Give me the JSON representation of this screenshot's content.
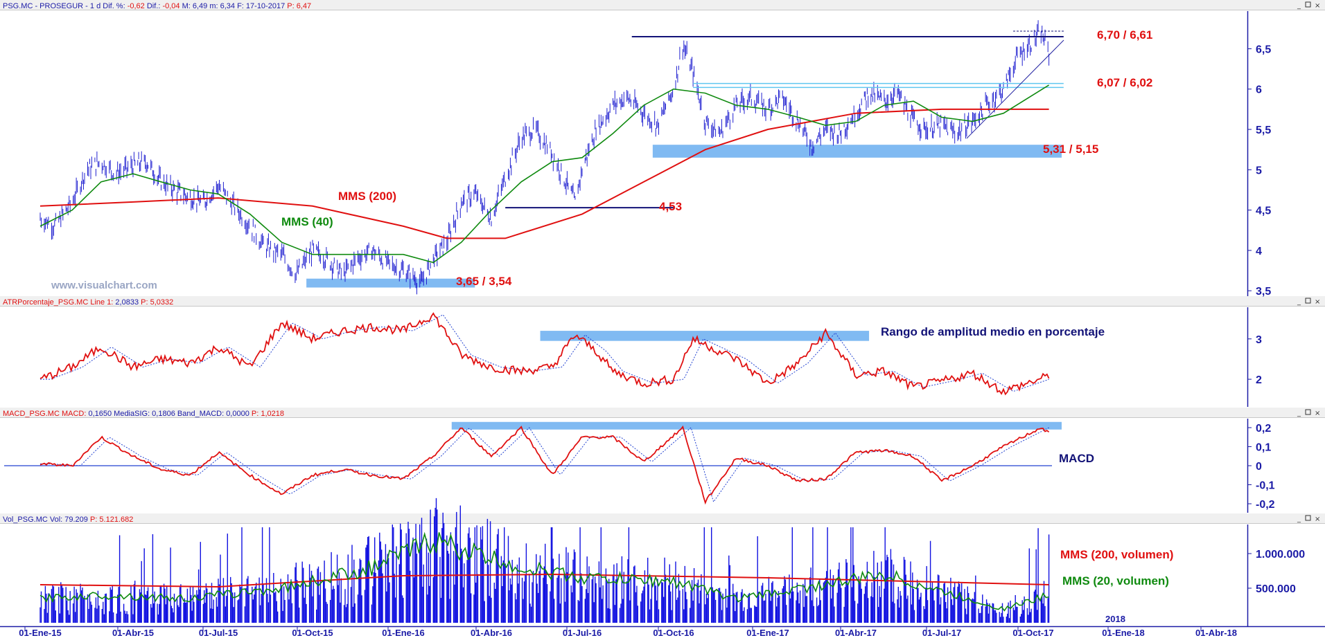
{
  "colors": {
    "price": "#2020d0",
    "sma200": "#e01010",
    "sma40": "#0f8a0f",
    "zone": "#6aaef0",
    "resistance": "#121277",
    "axis": "#1a1aa6",
    "volume_bar": "#1010e0",
    "macd_signal": "#2040d0"
  },
  "window_icons": {
    "minimize": "minimize-icon",
    "restore": "restore-icon",
    "close": "close-icon"
  },
  "panels": [
    {
      "id": "price",
      "header": [
        {
          "text": "PSG.MC - PROSEGUR - 1 d  Dif. %:",
          "color": "#1a1aa6"
        },
        {
          "text": " -0,62",
          "color": "#e01010"
        },
        {
          "text": "  Dif.:",
          "color": "#1a1aa6"
        },
        {
          "text": " -0,04",
          "color": "#e01010"
        },
        {
          "text": "  M: 6,49  m: 6,34  F: 17-10-2017",
          "color": "#1a1aa6"
        },
        {
          "text": "  P: 6,47",
          "color": "#e01010"
        }
      ],
      "yticks": [
        "6,5",
        "6",
        "5,5",
        "5",
        "4,5",
        "4",
        "3,5"
      ],
      "watermark": "www.visualchart.com"
    },
    {
      "id": "atr",
      "header": [
        {
          "text": "ATRPorcentaje_PSG.MC  Line 1:",
          "color": "#e01010"
        },
        {
          "text": " 2,0833",
          "color": "#1a1aa6"
        },
        {
          "text": "  P: 5,0332",
          "color": "#e01010"
        }
      ],
      "yticks": [
        "3",
        "2"
      ]
    },
    {
      "id": "macd",
      "header": [
        {
          "text": "MACD_PSG.MC  MACD:",
          "color": "#e01010"
        },
        {
          "text": " 0,1650  MediaSIG: 0,1806  Band_MACD: 0,0000",
          "color": "#1a1aa6"
        },
        {
          "text": "  P: 1,0218",
          "color": "#e01010"
        }
      ],
      "yticks": [
        "0,2",
        "0,1",
        "0",
        "-0,1",
        "-0,2"
      ]
    },
    {
      "id": "volume",
      "header": [
        {
          "text": "Vol_PSG.MC  Vol: 79.209",
          "color": "#1a1aa6"
        },
        {
          "text": "  P: 5.121.682",
          "color": "#e01010"
        }
      ],
      "yticks": [
        "1.000.000",
        "500.000"
      ]
    }
  ],
  "annotations": {
    "sma200": "MMS (200)",
    "sma40": "MMS (40)",
    "low_zone": "3,65 / 3,54",
    "support_453": "4,53",
    "support_zone": "5,31 / 5,15",
    "mid_resistance": "6,07 / 6,02",
    "top_resistance": "6,70 / 6,61",
    "atr_title": "Rango de amplitud medio en porcentaje",
    "macd_title": "MACD",
    "vol_sma200": "MMS (200, volumen)",
    "vol_sma20": "MMS (20, volumen)"
  },
  "x_axis": {
    "labels": [
      "01-Ene-15",
      "01-Abr-15",
      "01-Jul-15",
      "01-Oct-15",
      "01-Ene-16",
      "01-Abr-16",
      "01-Jul-16",
      "01-Oct-16",
      "01-Ene-17",
      "01-Abr-17",
      "01-Jul-17",
      "01-Oct-17",
      "01-Ene-18",
      "01-Abr-18"
    ],
    "year_marker": "2018"
  },
  "chart_data": [
    {
      "type": "candlestick",
      "id": "price",
      "ylim": [
        3.45,
        6.95
      ],
      "series_names": [
        "MMS (200)",
        "MMS (40)"
      ],
      "price_path": [
        [
          "2015-01-01",
          4.4
        ],
        [
          "2015-01-15",
          4.3
        ],
        [
          "2015-02-01",
          4.6
        ],
        [
          "2015-02-15",
          5.0
        ],
        [
          "2015-03-01",
          5.1
        ],
        [
          "2015-03-15",
          4.95
        ],
        [
          "2015-04-01",
          5.05
        ],
        [
          "2015-04-15",
          5.1
        ],
        [
          "2015-05-01",
          4.85
        ],
        [
          "2015-05-15",
          4.75
        ],
        [
          "2015-06-01",
          4.65
        ],
        [
          "2015-06-15",
          4.6
        ],
        [
          "2015-07-01",
          4.8
        ],
        [
          "2015-07-10",
          4.65
        ],
        [
          "2015-08-01",
          4.3
        ],
        [
          "2015-08-15",
          4.05
        ],
        [
          "2015-09-01",
          3.95
        ],
        [
          "2015-09-15",
          3.7
        ],
        [
          "2015-10-01",
          4.0
        ],
        [
          "2015-10-15",
          3.9
        ],
        [
          "2015-11-01",
          3.7
        ],
        [
          "2015-11-15",
          3.9
        ],
        [
          "2015-12-01",
          4.0
        ],
        [
          "2015-12-15",
          3.85
        ],
        [
          "2016-01-01",
          3.75
        ],
        [
          "2016-01-20",
          3.6
        ],
        [
          "2016-02-01",
          3.9
        ],
        [
          "2016-02-15",
          4.1
        ],
        [
          "2016-03-01",
          4.6
        ],
        [
          "2016-03-15",
          4.7
        ],
        [
          "2016-04-01",
          4.4
        ],
        [
          "2016-04-15",
          4.9
        ],
        [
          "2016-05-01",
          5.4
        ],
        [
          "2016-05-15",
          5.5
        ],
        [
          "2016-06-01",
          5.2
        ],
        [
          "2016-06-24",
          4.6
        ],
        [
          "2016-07-01",
          5.0
        ],
        [
          "2016-07-15",
          5.5
        ],
        [
          "2016-08-01",
          5.8
        ],
        [
          "2016-08-15",
          5.9
        ],
        [
          "2016-09-01",
          5.7
        ],
        [
          "2016-09-15",
          5.55
        ],
        [
          "2016-10-01",
          6.0
        ],
        [
          "2016-10-10",
          6.55
        ],
        [
          "2016-10-20",
          6.2
        ],
        [
          "2016-11-01",
          5.6
        ],
        [
          "2016-11-15",
          5.45
        ],
        [
          "2016-12-01",
          5.8
        ],
        [
          "2016-12-15",
          5.9
        ],
        [
          "2017-01-01",
          5.75
        ],
        [
          "2017-01-15",
          5.9
        ],
        [
          "2017-02-01",
          5.6
        ],
        [
          "2017-02-15",
          5.3
        ],
        [
          "2017-03-01",
          5.5
        ],
        [
          "2017-03-15",
          5.45
        ],
        [
          "2017-04-01",
          5.7
        ],
        [
          "2017-04-15",
          5.95
        ],
        [
          "2017-05-01",
          5.85
        ],
        [
          "2017-05-15",
          5.95
        ],
        [
          "2017-06-01",
          5.6
        ],
        [
          "2017-06-15",
          5.5
        ],
        [
          "2017-07-01",
          5.55
        ],
        [
          "2017-07-15",
          5.45
        ],
        [
          "2017-08-01",
          5.6
        ],
        [
          "2017-08-15",
          5.8
        ],
        [
          "2017-09-01",
          6.0
        ],
        [
          "2017-09-15",
          6.4
        ],
        [
          "2017-10-01",
          6.6
        ],
        [
          "2017-10-09",
          6.7
        ],
        [
          "2017-10-17",
          6.45
        ]
      ],
      "sma40": [
        [
          "2015-01-01",
          4.3
        ],
        [
          "2015-02-01",
          4.5
        ],
        [
          "2015-03-01",
          4.85
        ],
        [
          "2015-04-01",
          4.95
        ],
        [
          "2015-05-01",
          4.85
        ],
        [
          "2015-06-01",
          4.75
        ],
        [
          "2015-07-01",
          4.7
        ],
        [
          "2015-08-01",
          4.45
        ],
        [
          "2015-09-01",
          4.1
        ],
        [
          "2015-10-01",
          3.95
        ],
        [
          "2015-11-01",
          3.95
        ],
        [
          "2015-12-01",
          3.95
        ],
        [
          "2016-01-01",
          3.95
        ],
        [
          "2016-02-01",
          3.85
        ],
        [
          "2016-03-01",
          4.1
        ],
        [
          "2016-04-01",
          4.5
        ],
        [
          "2016-05-01",
          4.85
        ],
        [
          "2016-06-01",
          5.1
        ],
        [
          "2016-07-01",
          5.15
        ],
        [
          "2016-08-01",
          5.45
        ],
        [
          "2016-09-01",
          5.8
        ],
        [
          "2016-10-01",
          6.0
        ],
        [
          "2016-11-01",
          5.95
        ],
        [
          "2016-12-01",
          5.8
        ],
        [
          "2017-01-01",
          5.75
        ],
        [
          "2017-02-01",
          5.65
        ],
        [
          "2017-03-01",
          5.55
        ],
        [
          "2017-04-01",
          5.6
        ],
        [
          "2017-05-01",
          5.8
        ],
        [
          "2017-06-01",
          5.85
        ],
        [
          "2017-07-01",
          5.65
        ],
        [
          "2017-08-01",
          5.6
        ],
        [
          "2017-09-01",
          5.7
        ],
        [
          "2017-10-17",
          6.05
        ]
      ],
      "sma200": [
        [
          "2015-01-01",
          4.55
        ],
        [
          "2015-04-01",
          4.6
        ],
        [
          "2015-07-01",
          4.65
        ],
        [
          "2015-10-01",
          4.55
        ],
        [
          "2016-01-01",
          4.3
        ],
        [
          "2016-02-15",
          4.15
        ],
        [
          "2016-04-15",
          4.15
        ],
        [
          "2016-07-01",
          4.45
        ],
        [
          "2016-09-01",
          4.85
        ],
        [
          "2016-11-01",
          5.25
        ],
        [
          "2017-01-01",
          5.5
        ],
        [
          "2017-04-01",
          5.7
        ],
        [
          "2017-07-01",
          5.75
        ],
        [
          "2017-10-17",
          5.75
        ]
      ],
      "zones": [
        {
          "label": "3,65 / 3,54",
          "from": "2015-09-25",
          "to": "2016-03-15",
          "low": 3.54,
          "high": 3.65
        },
        {
          "label": "5,31 / 5,15",
          "from": "2016-09-10",
          "to": "2017-10-30",
          "low": 5.15,
          "high": 5.31
        }
      ],
      "lines": [
        {
          "label": "4,53",
          "from": "2016-04-15",
          "to": "2016-10-01",
          "value": 4.53
        },
        {
          "label": "6,70 / 6,61",
          "from": "2016-08-20",
          "to": "2017-11-01",
          "value": 6.65
        },
        {
          "label": "6,07 / 6,02",
          "from": "2016-10-20",
          "to": "2017-11-01",
          "value": 6.07
        },
        {
          "label": "",
          "from": "2016-10-20",
          "to": "2017-11-01",
          "value": 6.02
        }
      ]
    },
    {
      "type": "line",
      "id": "atr",
      "ylim": [
        1.35,
        3.75
      ],
      "series": [
        {
          "name": "ATR",
          "values": [
            [
              "2015-01-01",
              2.0
            ],
            [
              "2015-02-01",
              2.3
            ],
            [
              "2015-03-01",
              2.8
            ],
            [
              "2015-04-01",
              2.3
            ],
            [
              "2015-05-01",
              2.5
            ],
            [
              "2015-06-01",
              2.4
            ],
            [
              "2015-07-01",
              2.8
            ],
            [
              "2015-08-01",
              2.3
            ],
            [
              "2015-09-01",
              3.4
            ],
            [
              "2015-10-01",
              3.0
            ],
            [
              "2015-11-01",
              3.2
            ],
            [
              "2015-12-01",
              3.3
            ],
            [
              "2016-01-01",
              3.2
            ],
            [
              "2016-02-01",
              3.6
            ],
            [
              "2016-03-01",
              2.6
            ],
            [
              "2016-04-01",
              2.3
            ],
            [
              "2016-05-01",
              2.2
            ],
            [
              "2016-06-01",
              2.3
            ],
            [
              "2016-06-24",
              3.1
            ],
            [
              "2016-07-15",
              2.7
            ],
            [
              "2016-08-01",
              2.2
            ],
            [
              "2016-09-01",
              1.9
            ],
            [
              "2016-10-01",
              2.0
            ],
            [
              "2016-10-20",
              3.0
            ],
            [
              "2016-12-01",
              2.5
            ],
            [
              "2017-01-01",
              1.9
            ],
            [
              "2017-02-01",
              2.4
            ],
            [
              "2017-03-01",
              3.15
            ],
            [
              "2017-04-01",
              2.1
            ],
            [
              "2017-05-01",
              2.2
            ],
            [
              "2017-06-01",
              1.8
            ],
            [
              "2017-07-01",
              1.95
            ],
            [
              "2017-08-01",
              2.15
            ],
            [
              "2017-09-01",
              1.7
            ],
            [
              "2017-10-17",
              2.08
            ]
          ]
        }
      ],
      "zone": {
        "from": "2016-05-20",
        "to": "2017-04-15",
        "low": 2.95,
        "high": 3.2
      }
    },
    {
      "type": "line",
      "id": "macd",
      "ylim": [
        -0.24,
        0.24
      ],
      "series": [
        {
          "name": "MACD",
          "values": [
            [
              "2015-01-01",
              0.01
            ],
            [
              "2015-02-01",
              0.0
            ],
            [
              "2015-03-01",
              0.15
            ],
            [
              "2015-04-01",
              0.05
            ],
            [
              "2015-05-01",
              -0.02
            ],
            [
              "2015-06-01",
              -0.05
            ],
            [
              "2015-07-01",
              0.07
            ],
            [
              "2015-08-01",
              -0.05
            ],
            [
              "2015-09-01",
              -0.15
            ],
            [
              "2015-10-01",
              -0.05
            ],
            [
              "2015-11-01",
              -0.02
            ],
            [
              "2015-12-01",
              -0.05
            ],
            [
              "2016-01-01",
              -0.07
            ],
            [
              "2016-02-01",
              0.05
            ],
            [
              "2016-03-01",
              0.2
            ],
            [
              "2016-04-01",
              0.05
            ],
            [
              "2016-05-01",
              0.2
            ],
            [
              "2016-06-01",
              -0.05
            ],
            [
              "2016-07-01",
              0.15
            ],
            [
              "2016-08-01",
              0.15
            ],
            [
              "2016-09-01",
              0.02
            ],
            [
              "2016-10-10",
              0.2
            ],
            [
              "2016-11-01",
              -0.19
            ],
            [
              "2016-12-01",
              0.04
            ],
            [
              "2017-01-01",
              0.0
            ],
            [
              "2017-02-01",
              -0.08
            ],
            [
              "2017-03-01",
              -0.07
            ],
            [
              "2017-04-01",
              0.07
            ],
            [
              "2017-05-01",
              0.08
            ],
            [
              "2017-06-01",
              0.05
            ],
            [
              "2017-07-01",
              -0.08
            ],
            [
              "2017-08-01",
              0.0
            ],
            [
              "2017-09-01",
              0.1
            ],
            [
              "2017-10-09",
              0.2
            ],
            [
              "2017-10-17",
              0.17
            ]
          ]
        }
      ],
      "zero_line": 0,
      "zone": {
        "from": "2016-02-20",
        "to": "2017-10-30",
        "low": 0.19,
        "high": 0.23
      }
    },
    {
      "type": "bar",
      "id": "volume",
      "ylim": [
        0,
        1400000
      ],
      "series": [
        {
          "name": "MMS (200, volumen)",
          "values": [
            [
              "2015-01-01",
              550000
            ],
            [
              "2015-07-01",
              520000
            ],
            [
              "2016-01-01",
              680000
            ],
            [
              "2016-06-01",
              700000
            ],
            [
              "2017-01-01",
              650000
            ],
            [
              "2017-10-17",
              550000
            ]
          ]
        },
        {
          "name": "MMS (20, volumen)",
          "values": [
            [
              "2015-01-01",
              350000
            ],
            [
              "2015-03-01",
              400000
            ],
            [
              "2015-06-01",
              350000
            ],
            [
              "2015-09-01",
              500000
            ],
            [
              "2015-12-01",
              800000
            ],
            [
              "2016-02-01",
              1200000
            ],
            [
              "2016-03-15",
              1000000
            ],
            [
              "2016-05-01",
              800000
            ],
            [
              "2016-07-01",
              650000
            ],
            [
              "2016-10-01",
              600000
            ],
            [
              "2016-12-01",
              350000
            ],
            [
              "2017-03-01",
              550000
            ],
            [
              "2017-05-01",
              700000
            ],
            [
              "2017-07-01",
              450000
            ],
            [
              "2017-09-01",
              200000
            ],
            [
              "2017-10-17",
              400000
            ]
          ]
        }
      ]
    }
  ]
}
